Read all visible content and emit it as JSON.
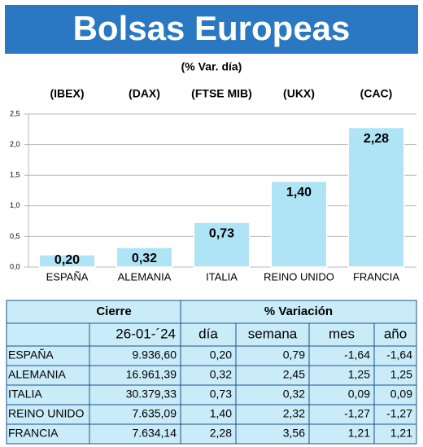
{
  "chart_data": {
    "type": "bar",
    "title": "Bolsas Europeas",
    "subtitle": "(% Var. día)",
    "indices": [
      "(IBEX)",
      "(DAX)",
      "(FTSE MIB)",
      "(UKX)",
      "(CAC)"
    ],
    "categories": [
      "ESPAÑA",
      "ALEMANIA",
      "ITALIA",
      "REINO UNIDO",
      "FRANCIA"
    ],
    "values": [
      0.2,
      0.32,
      0.73,
      1.4,
      2.28
    ],
    "value_labels": [
      "0,20",
      "0,32",
      "0,73",
      "1,40",
      "2,28"
    ],
    "color": "#aee4f6",
    "title_color": "#2a78c2",
    "ylim": [
      0,
      2.5
    ],
    "yticks": [
      {
        "value": 0,
        "label": "0,0"
      },
      {
        "value": 0.5,
        "label": "0,5"
      },
      {
        "value": 1,
        "label": "1,0"
      },
      {
        "value": 1.5,
        "label": "1,5"
      },
      {
        "value": 2,
        "label": "2,0"
      },
      {
        "value": 2.5,
        "label": "2,5"
      }
    ],
    "grid": true
  },
  "table": {
    "group_headers": [
      "Cierre",
      "% Variación"
    ],
    "columns": [
      "26-01-´24",
      "día",
      "semana",
      "mes",
      "año"
    ],
    "rows": [
      [
        "ESPAÑA",
        "9.936,60",
        "0,20",
        "0,79",
        "-1,64",
        "-1,64"
      ],
      [
        "ALEMANIA",
        "16.961,39",
        "0,32",
        "2,45",
        "1,25",
        "1,25"
      ],
      [
        "ITALIA",
        "30.379,33",
        "0,73",
        "0,32",
        "0,09",
        "0,09"
      ],
      [
        "REINO UNIDO",
        "7.635,09",
        "1,40",
        "2,32",
        "-1,27",
        "-1,27"
      ],
      [
        "FRANCIA",
        "7.634,14",
        "2,28",
        "3,56",
        "1,21",
        "1,21"
      ]
    ]
  }
}
